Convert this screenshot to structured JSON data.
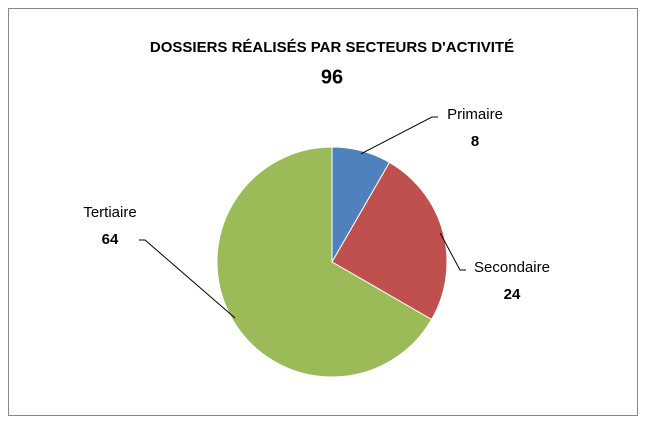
{
  "chart_data": {
    "type": "pie",
    "title": "DOSSIERS RÉALISÉS PAR SECTEURS D'ACTIVITÉ",
    "subtitle": "96",
    "categories": [
      "Primaire",
      "Secondaire",
      "Tertiaire"
    ],
    "values": [
      8,
      24,
      64
    ],
    "colors": [
      "#4f81bd",
      "#c0504d",
      "#9bbb59"
    ]
  }
}
